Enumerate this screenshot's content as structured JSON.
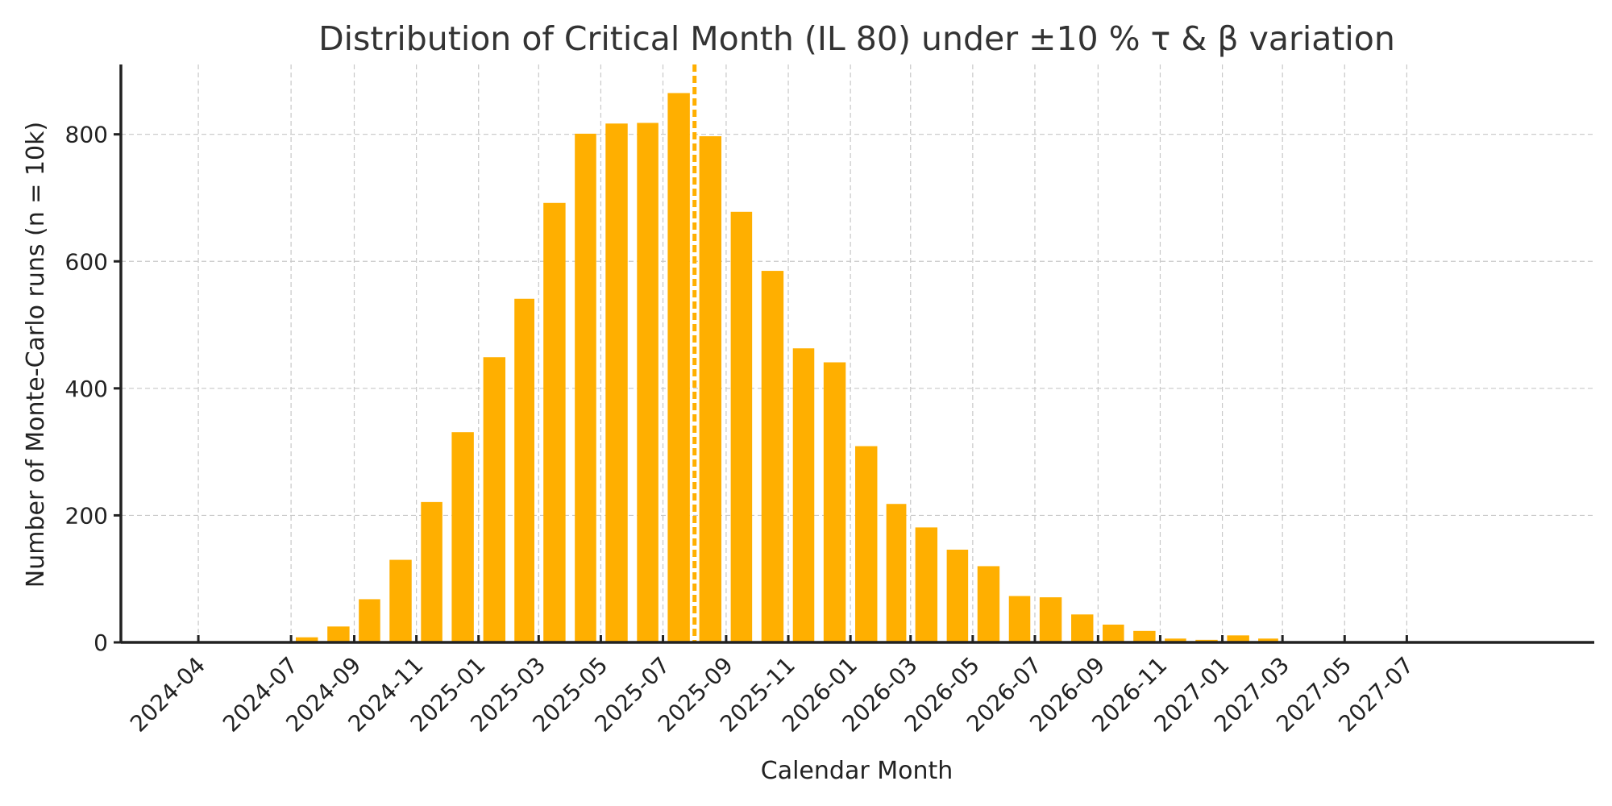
{
  "chart_data": {
    "type": "bar",
    "title": "Distribution of Critical Month (IL 80) under ±10 % τ & β variation",
    "xlabel": "Calendar Month",
    "ylabel": "Number of Monte-Carlo runs (n = 10k)",
    "x_axis_type": "date-month",
    "xlim": [
      "2024-01-16",
      "2028-01-01"
    ],
    "ylim": [
      0,
      910
    ],
    "yticks": [
      0,
      200,
      400,
      600,
      800
    ],
    "xticks": [
      "2024-04",
      "2024-07",
      "2024-09",
      "2024-11",
      "2025-01",
      "2025-03",
      "2025-05",
      "2025-07",
      "2025-09",
      "2025-11",
      "2026-01",
      "2026-03",
      "2026-05",
      "2026-07",
      "2026-09",
      "2026-11",
      "2027-01",
      "2027-03",
      "2027-05",
      "2027-07"
    ],
    "grid": true,
    "bar_color": "#FFAF00",
    "marker": {
      "x": "2025-08-01",
      "style": "dashed",
      "color": "#FFAF00"
    },
    "categories": [
      "2024-07",
      "2024-08",
      "2024-09",
      "2024-10",
      "2024-11",
      "2024-12",
      "2025-01",
      "2025-02",
      "2025-03",
      "2025-04",
      "2025-05",
      "2025-06",
      "2025-07",
      "2025-08",
      "2025-09",
      "2025-10",
      "2025-11",
      "2025-12",
      "2026-01",
      "2026-02",
      "2026-03",
      "2026-04",
      "2026-05",
      "2026-06",
      "2026-07",
      "2026-08",
      "2026-09",
      "2026-10",
      "2026-11",
      "2026-12",
      "2027-01",
      "2027-02"
    ],
    "values": [
      8,
      25,
      68,
      130,
      221,
      331,
      449,
      541,
      692,
      801,
      817,
      818,
      865,
      797,
      678,
      585,
      463,
      441,
      309,
      218,
      181,
      146,
      120,
      73,
      71,
      44,
      28,
      18,
      6,
      4,
      11,
      6
    ]
  }
}
